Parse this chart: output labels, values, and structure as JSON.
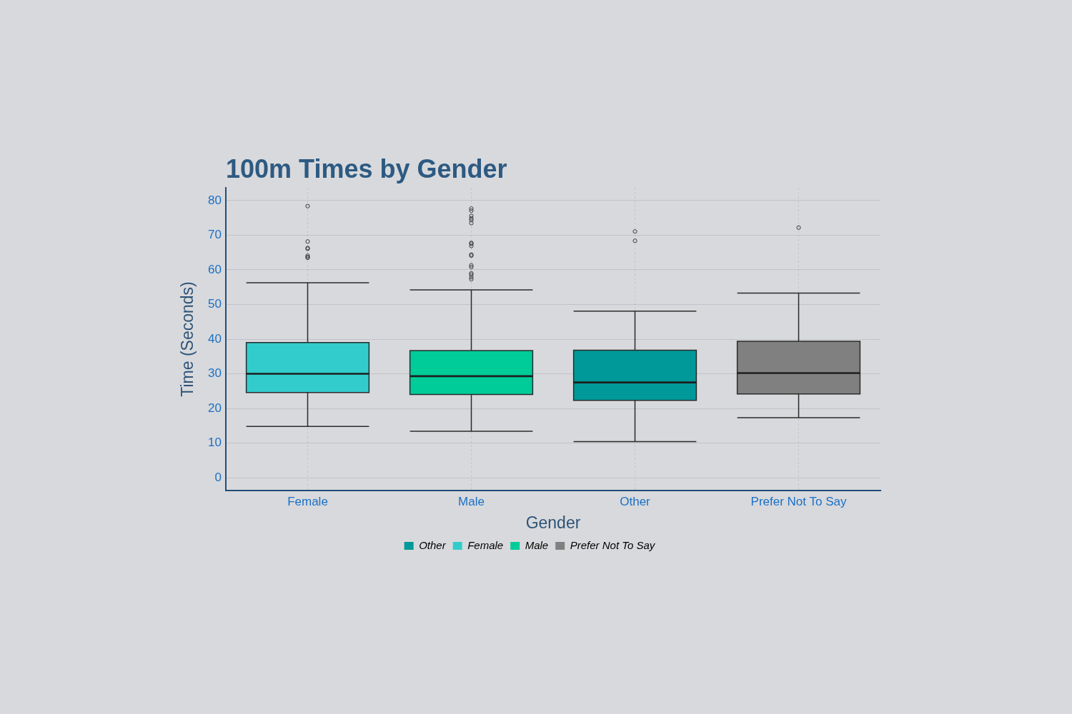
{
  "chart_data": {
    "type": "box",
    "title": "100m Times by Gender",
    "xlabel": "Gender",
    "ylabel": "Time (Seconds)",
    "categories": [
      "Female",
      "Male",
      "Other",
      "Prefer Not To Say"
    ],
    "series": [
      {
        "name": "Other",
        "color": "#009999",
        "boxes": [
          null,
          null,
          {
            "low": 10.4,
            "q1": 22.3,
            "median": 27.5,
            "q3": 36.8,
            "high": 48.1,
            "outliers": [
              71.1,
              68.4
            ]
          },
          null
        ]
      },
      {
        "name": "Female",
        "color": "#33cccc",
        "boxes": [
          {
            "low": 14.8,
            "q1": 24.6,
            "median": 30.0,
            "q3": 39.0,
            "high": 56.3,
            "outliers": [
              78.4,
              68.2,
              66.3,
              66.1,
              64.1,
              63.7,
              63.5
            ]
          },
          null,
          null,
          null
        ]
      },
      {
        "name": "Male",
        "color": "#00cc99",
        "boxes": [
          null,
          {
            "low": 13.4,
            "q1": 24.0,
            "median": 29.3,
            "q3": 36.7,
            "high": 54.2,
            "outliers": [
              77.7,
              77.1,
              75.6,
              74.9,
              74.4,
              73.5,
              67.8,
              67.5,
              66.9,
              64.4,
              64.1,
              61.3,
              60.8,
              59.0,
              58.6,
              57.9,
              57.3
            ]
          },
          null,
          null
        ]
      },
      {
        "name": "Prefer Not To Say",
        "color": "#808080",
        "boxes": [
          null,
          null,
          null,
          {
            "low": 17.3,
            "q1": 24.2,
            "median": 30.2,
            "q3": 39.4,
            "high": 53.3,
            "outliers": [
              72.2
            ]
          }
        ]
      }
    ],
    "ylim": [
      -3.7,
      83.7
    ],
    "yticks": [
      0,
      10,
      20,
      30,
      40,
      50,
      60,
      70,
      80
    ],
    "grid": true,
    "legend": "bottom",
    "marker": "circle"
  }
}
